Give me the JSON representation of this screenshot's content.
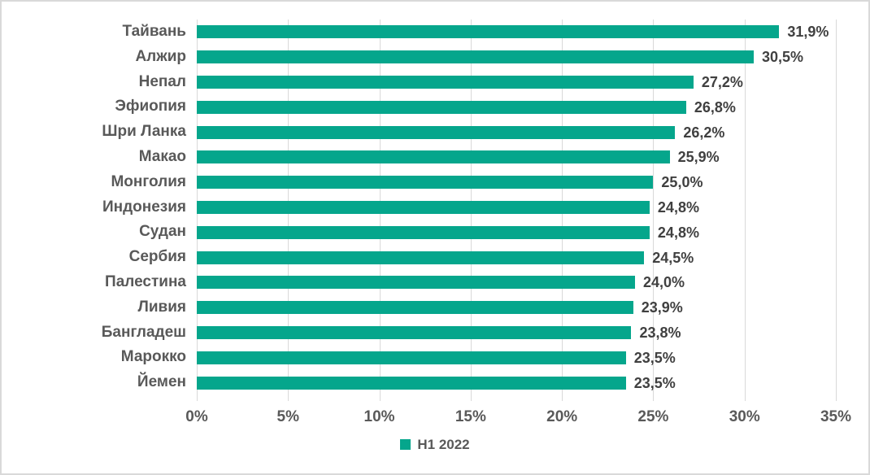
{
  "chart_data": {
    "type": "bar",
    "orientation": "horizontal",
    "title": "",
    "categories": [
      "Тайвань",
      "Алжир",
      "Непал",
      "Эфиопия",
      "Шри Ланка",
      "Макао",
      "Монголия",
      "Индонезия",
      "Судан",
      "Сербия",
      "Палестина",
      "Ливия",
      "Бангладеш",
      "Марокко",
      "Йемен"
    ],
    "series": [
      {
        "name": "H1 2022",
        "values": [
          31.9,
          30.5,
          27.2,
          26.8,
          26.2,
          25.9,
          25.0,
          24.8,
          24.8,
          24.5,
          24.0,
          23.9,
          23.8,
          23.5,
          23.5
        ]
      }
    ],
    "value_labels": [
      "31,9%",
      "30,5%",
      "27,2%",
      "26,8%",
      "26,2%",
      "25,9%",
      "25,0%",
      "24,8%",
      "24,8%",
      "24,5%",
      "24,0%",
      "23,9%",
      "23,8%",
      "23,5%",
      "23,5%"
    ],
    "x_tick_labels": [
      "0%",
      "5%",
      "10%",
      "15%",
      "20%",
      "25%",
      "30%",
      "35%"
    ],
    "xlim": [
      0,
      35
    ],
    "grid": "vertical",
    "legend": {
      "label": "H1 2022",
      "position": "bottom-center"
    },
    "colors": {
      "bar": "#05A68C",
      "category_label": "#595959",
      "value_label": "#404040",
      "gridline": "#D9D9D9",
      "frame_border": "#D9D9D9",
      "background": "#FFFFFF"
    }
  }
}
